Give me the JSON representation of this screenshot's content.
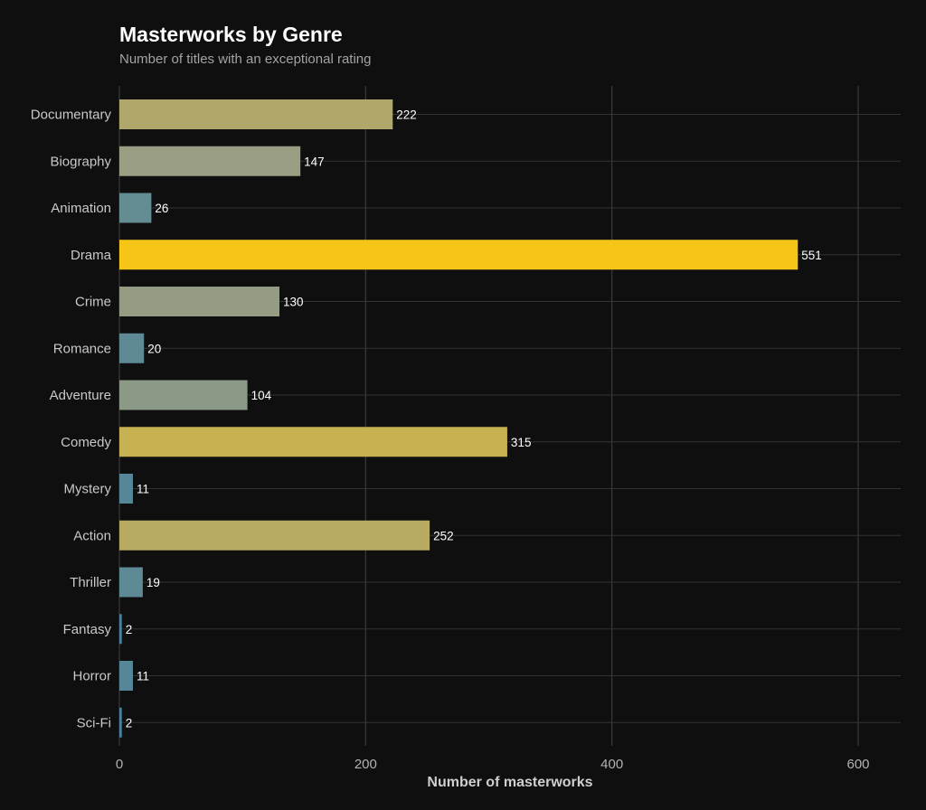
{
  "chart_data": {
    "type": "bar",
    "orientation": "horizontal",
    "title": "Masterworks by Genre",
    "subtitle": "Number of titles with an exceptional rating",
    "xlabel": "Number of masterworks",
    "ylabel": "",
    "xlim": [
      0,
      630
    ],
    "xticks": [
      0,
      200,
      400,
      600
    ],
    "grid": true,
    "legend": "none",
    "categories": [
      "Documentary",
      "Biography",
      "Animation",
      "Drama",
      "Crime",
      "Romance",
      "Adventure",
      "Comedy",
      "Mystery",
      "Action",
      "Thriller",
      "Fantasy",
      "Horror",
      "Sci-Fi"
    ],
    "values": [
      222,
      147,
      26,
      551,
      130,
      20,
      104,
      315,
      11,
      252,
      19,
      2,
      11,
      2
    ],
    "colors": {
      "low": "#3c7fa0",
      "mid": "#a0a080",
      "high": "#f5c518",
      "background": "#0f0f0f"
    }
  }
}
